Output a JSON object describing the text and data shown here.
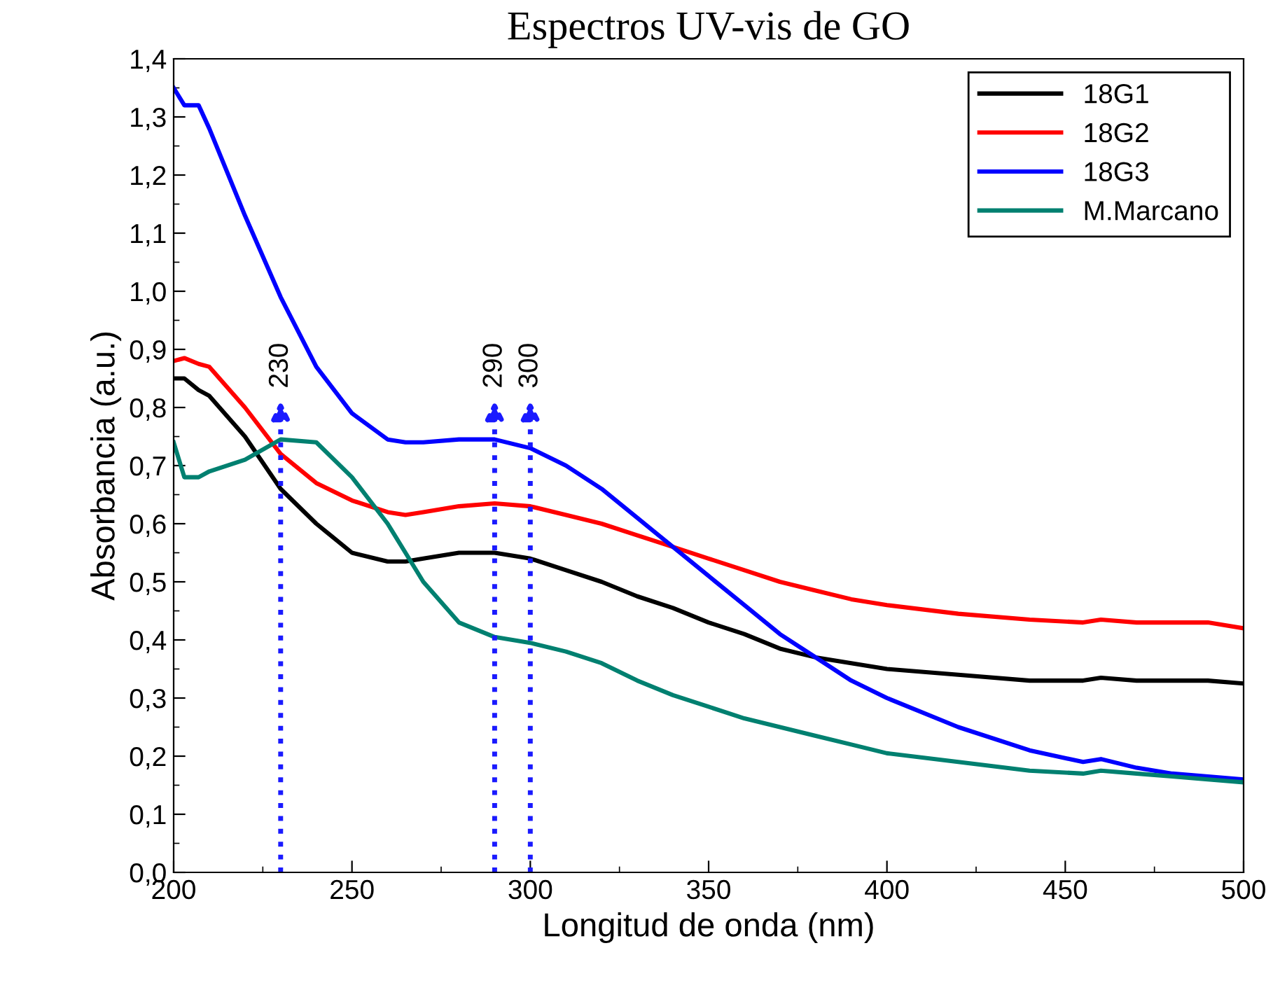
{
  "chart_data": {
    "type": "line",
    "title": "Espectros UV-vis de GO",
    "xlabel": "Longitud de onda (nm)",
    "ylabel": "Absorbancia (a.u.)",
    "xlim": [
      200,
      500
    ],
    "xticks": [
      200,
      250,
      300,
      350,
      400,
      450,
      500
    ],
    "ylim": [
      0,
      1.4
    ],
    "yticks": [
      {
        "value": 0,
        "label": "0,0"
      },
      {
        "value": 0.1,
        "label": "0,1"
      },
      {
        "value": 0.2,
        "label": "0,2"
      },
      {
        "value": 0.3,
        "label": "0,3"
      },
      {
        "value": 0.4,
        "label": "0,4"
      },
      {
        "value": 0.5,
        "label": "0,5"
      },
      {
        "value": 0.6,
        "label": "0,6"
      },
      {
        "value": 0.7,
        "label": "0,7"
      },
      {
        "value": 0.8,
        "label": "0,8"
      },
      {
        "value": 0.9,
        "label": "0,9"
      },
      {
        "value": 1.0,
        "label": "1,0"
      },
      {
        "value": 1.1,
        "label": "1,1"
      },
      {
        "value": 1.2,
        "label": "1,2"
      },
      {
        "value": 1.3,
        "label": "1,3"
      },
      {
        "value": 1.4,
        "label": "1,4"
      }
    ],
    "x": [
      200,
      203,
      207,
      210,
      220,
      230,
      240,
      250,
      260,
      265,
      270,
      280,
      290,
      300,
      310,
      320,
      330,
      340,
      350,
      360,
      370,
      380,
      390,
      400,
      420,
      440,
      455,
      460,
      470,
      480,
      490,
      500
    ],
    "series": [
      {
        "name": "18G1",
        "color": "#000000",
        "values": [
          0.85,
          0.85,
          0.83,
          0.82,
          0.75,
          0.66,
          0.6,
          0.55,
          0.535,
          0.535,
          0.54,
          0.55,
          0.55,
          0.54,
          0.52,
          0.5,
          0.475,
          0.455,
          0.43,
          0.41,
          0.385,
          0.37,
          0.36,
          0.35,
          0.34,
          0.33,
          0.33,
          0.335,
          0.33,
          0.33,
          0.33,
          0.325
        ]
      },
      {
        "name": "18G2",
        "color": "#ff0000",
        "values": [
          0.88,
          0.885,
          0.875,
          0.87,
          0.8,
          0.72,
          0.67,
          0.64,
          0.62,
          0.615,
          0.62,
          0.63,
          0.635,
          0.63,
          0.615,
          0.6,
          0.58,
          0.56,
          0.54,
          0.52,
          0.5,
          0.485,
          0.47,
          0.46,
          0.445,
          0.435,
          0.43,
          0.435,
          0.43,
          0.43,
          0.43,
          0.42
        ]
      },
      {
        "name": "18G3",
        "color": "#0000ff",
        "values": [
          1.35,
          1.32,
          1.32,
          1.28,
          1.13,
          0.99,
          0.87,
          0.79,
          0.745,
          0.74,
          0.74,
          0.745,
          0.745,
          0.73,
          0.7,
          0.66,
          0.61,
          0.56,
          0.51,
          0.46,
          0.41,
          0.37,
          0.33,
          0.3,
          0.25,
          0.21,
          0.19,
          0.195,
          0.18,
          0.17,
          0.165,
          0.16
        ]
      },
      {
        "name": "M.Marcano",
        "color": "#008070",
        "values": [
          0.74,
          0.68,
          0.68,
          0.69,
          0.71,
          0.745,
          0.74,
          0.68,
          0.6,
          0.55,
          0.5,
          0.43,
          0.405,
          0.395,
          0.38,
          0.36,
          0.33,
          0.305,
          0.285,
          0.265,
          0.25,
          0.235,
          0.22,
          0.205,
          0.19,
          0.175,
          0.17,
          0.175,
          0.17,
          0.165,
          0.16,
          0.155
        ]
      }
    ],
    "ref_lines": [
      {
        "axis": "x",
        "value": 230,
        "label": "230",
        "color": "#1a1aff",
        "line_style": "dotted"
      },
      {
        "axis": "x",
        "value": 290,
        "label": "290",
        "color": "#1a1aff",
        "line_style": "dotted"
      },
      {
        "axis": "x",
        "value": 300,
        "label": "300",
        "color": "#1a1aff",
        "line_style": "dotted"
      }
    ],
    "legend": "top right",
    "grid": false,
    "marker": "none",
    "line_style": "solid"
  }
}
